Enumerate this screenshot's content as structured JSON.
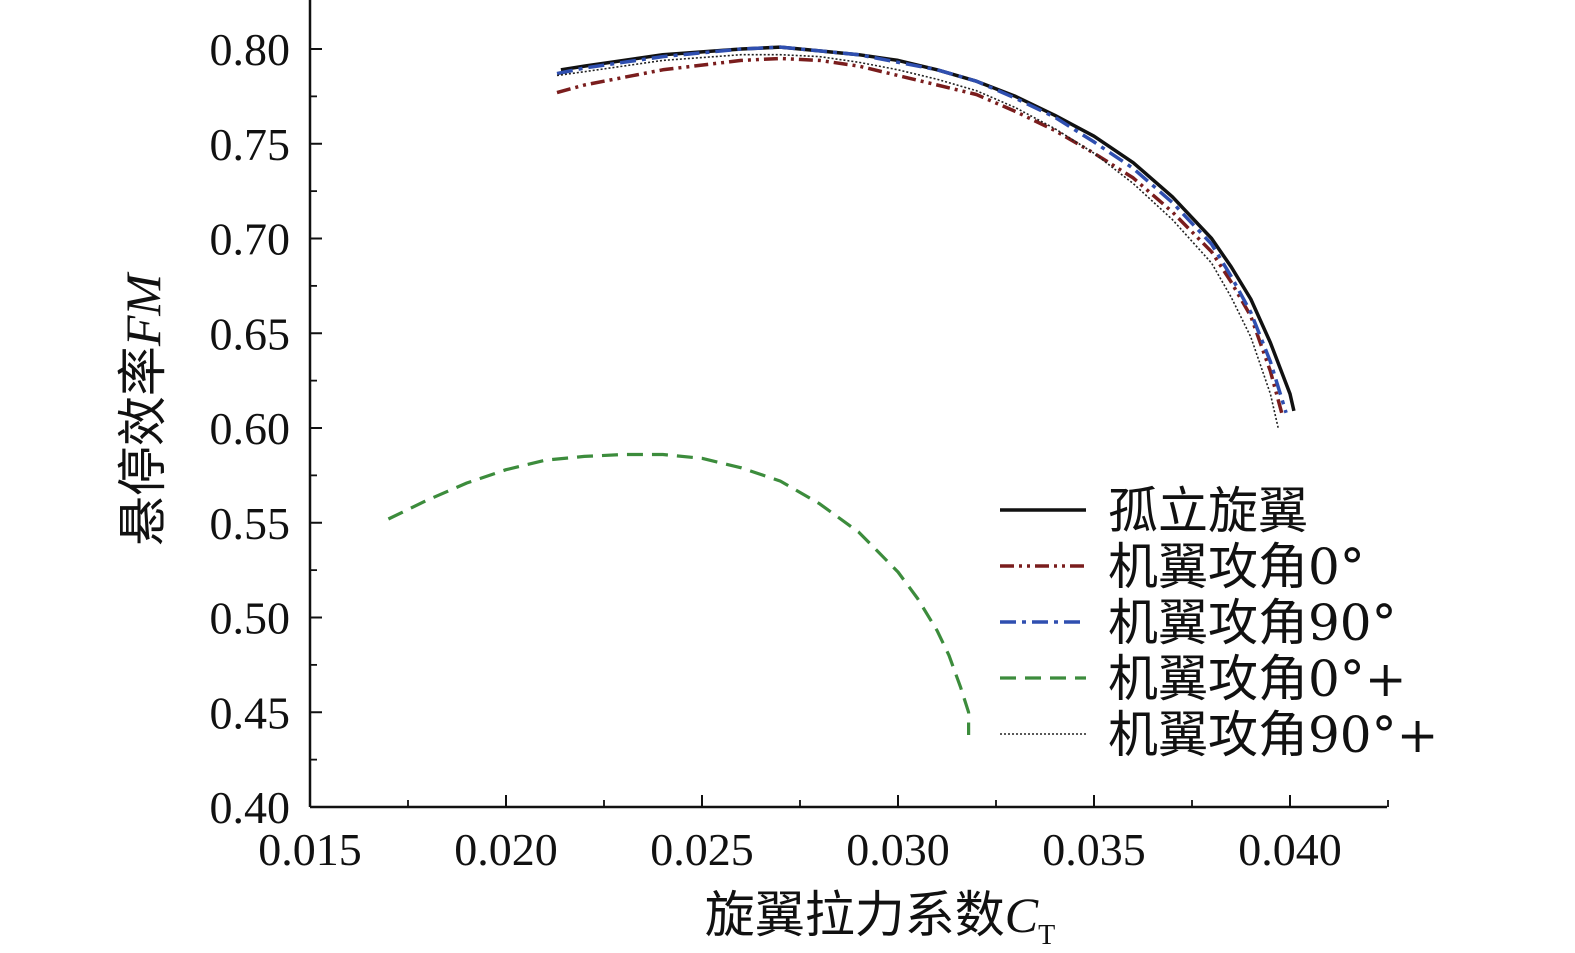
{
  "chart_data": {
    "type": "line",
    "xlabel": {
      "main": "旋翼拉力系数",
      "var": "C",
      "sub": "T"
    },
    "ylabel": {
      "main": "悬停效率",
      "var": "FM"
    },
    "xlim": [
      0.015,
      0.0425
    ],
    "ylim": [
      0.4,
      0.82
    ],
    "x_ticks": [
      "0.015",
      "0.020",
      "0.025",
      "0.030",
      "0.035",
      "0.040"
    ],
    "y_ticks": [
      "0.40",
      "0.45",
      "0.50",
      "0.55",
      "0.60",
      "0.65",
      "0.70",
      "0.75",
      "0.80"
    ],
    "grid": false,
    "legend_position": "bottom-right",
    "series": [
      {
        "name": "孤立旋翼",
        "color": "#111111",
        "style": "solid",
        "x": [
          0.0214,
          0.022,
          0.024,
          0.026,
          0.027,
          0.028,
          0.029,
          0.03,
          0.031,
          0.032,
          0.033,
          0.034,
          0.035,
          0.036,
          0.037,
          0.038,
          0.0385,
          0.039,
          0.0395,
          0.04,
          0.0401
        ],
        "y": [
          0.789,
          0.791,
          0.797,
          0.8,
          0.801,
          0.799,
          0.797,
          0.794,
          0.789,
          0.783,
          0.775,
          0.765,
          0.754,
          0.74,
          0.722,
          0.7,
          0.685,
          0.668,
          0.645,
          0.618,
          0.609
        ]
      },
      {
        "name": "机翼攻角0°",
        "color": "#7a1d1d",
        "style": "dashdotdot",
        "x": [
          0.0213,
          0.022,
          0.024,
          0.026,
          0.027,
          0.028,
          0.029,
          0.03,
          0.031,
          0.032,
          0.033,
          0.034,
          0.035,
          0.036,
          0.037,
          0.038,
          0.0385,
          0.039,
          0.0395,
          0.0398
        ],
        "y": [
          0.777,
          0.781,
          0.789,
          0.794,
          0.795,
          0.794,
          0.791,
          0.786,
          0.781,
          0.776,
          0.767,
          0.757,
          0.745,
          0.732,
          0.714,
          0.693,
          0.677,
          0.659,
          0.63,
          0.607
        ]
      },
      {
        "name": "机翼攻角90°",
        "color": "#2f4fb0",
        "style": "dashdot",
        "x": [
          0.0213,
          0.022,
          0.024,
          0.026,
          0.027,
          0.028,
          0.029,
          0.03,
          0.031,
          0.032,
          0.033,
          0.034,
          0.035,
          0.036,
          0.037,
          0.038,
          0.0385,
          0.039,
          0.0395,
          0.0399
        ],
        "y": [
          0.787,
          0.79,
          0.796,
          0.8,
          0.801,
          0.799,
          0.797,
          0.793,
          0.789,
          0.783,
          0.774,
          0.764,
          0.751,
          0.737,
          0.719,
          0.697,
          0.68,
          0.661,
          0.635,
          0.608
        ]
      },
      {
        "name": "机翼攻角0°+",
        "color": "#3c8c3c",
        "style": "dashed",
        "x": [
          0.017,
          0.018,
          0.019,
          0.02,
          0.021,
          0.022,
          0.023,
          0.024,
          0.025,
          0.026,
          0.027,
          0.028,
          0.029,
          0.03,
          0.0305,
          0.031,
          0.0313,
          0.0316,
          0.0318,
          0.0318
        ],
        "y": [
          0.552,
          0.562,
          0.571,
          0.578,
          0.583,
          0.585,
          0.586,
          0.586,
          0.584,
          0.579,
          0.572,
          0.56,
          0.545,
          0.524,
          0.51,
          0.493,
          0.48,
          0.463,
          0.45,
          0.438
        ]
      },
      {
        "name": "机翼攻角90°+",
        "color": "#222222",
        "style": "dotted",
        "x": [
          0.0213,
          0.022,
          0.024,
          0.026,
          0.027,
          0.028,
          0.029,
          0.03,
          0.031,
          0.032,
          0.033,
          0.034,
          0.035,
          0.036,
          0.037,
          0.038,
          0.0385,
          0.039,
          0.0395,
          0.0397
        ],
        "y": [
          0.786,
          0.788,
          0.794,
          0.797,
          0.797,
          0.796,
          0.793,
          0.789,
          0.784,
          0.778,
          0.769,
          0.758,
          0.745,
          0.729,
          0.71,
          0.687,
          0.669,
          0.648,
          0.618,
          0.6
        ]
      }
    ]
  }
}
